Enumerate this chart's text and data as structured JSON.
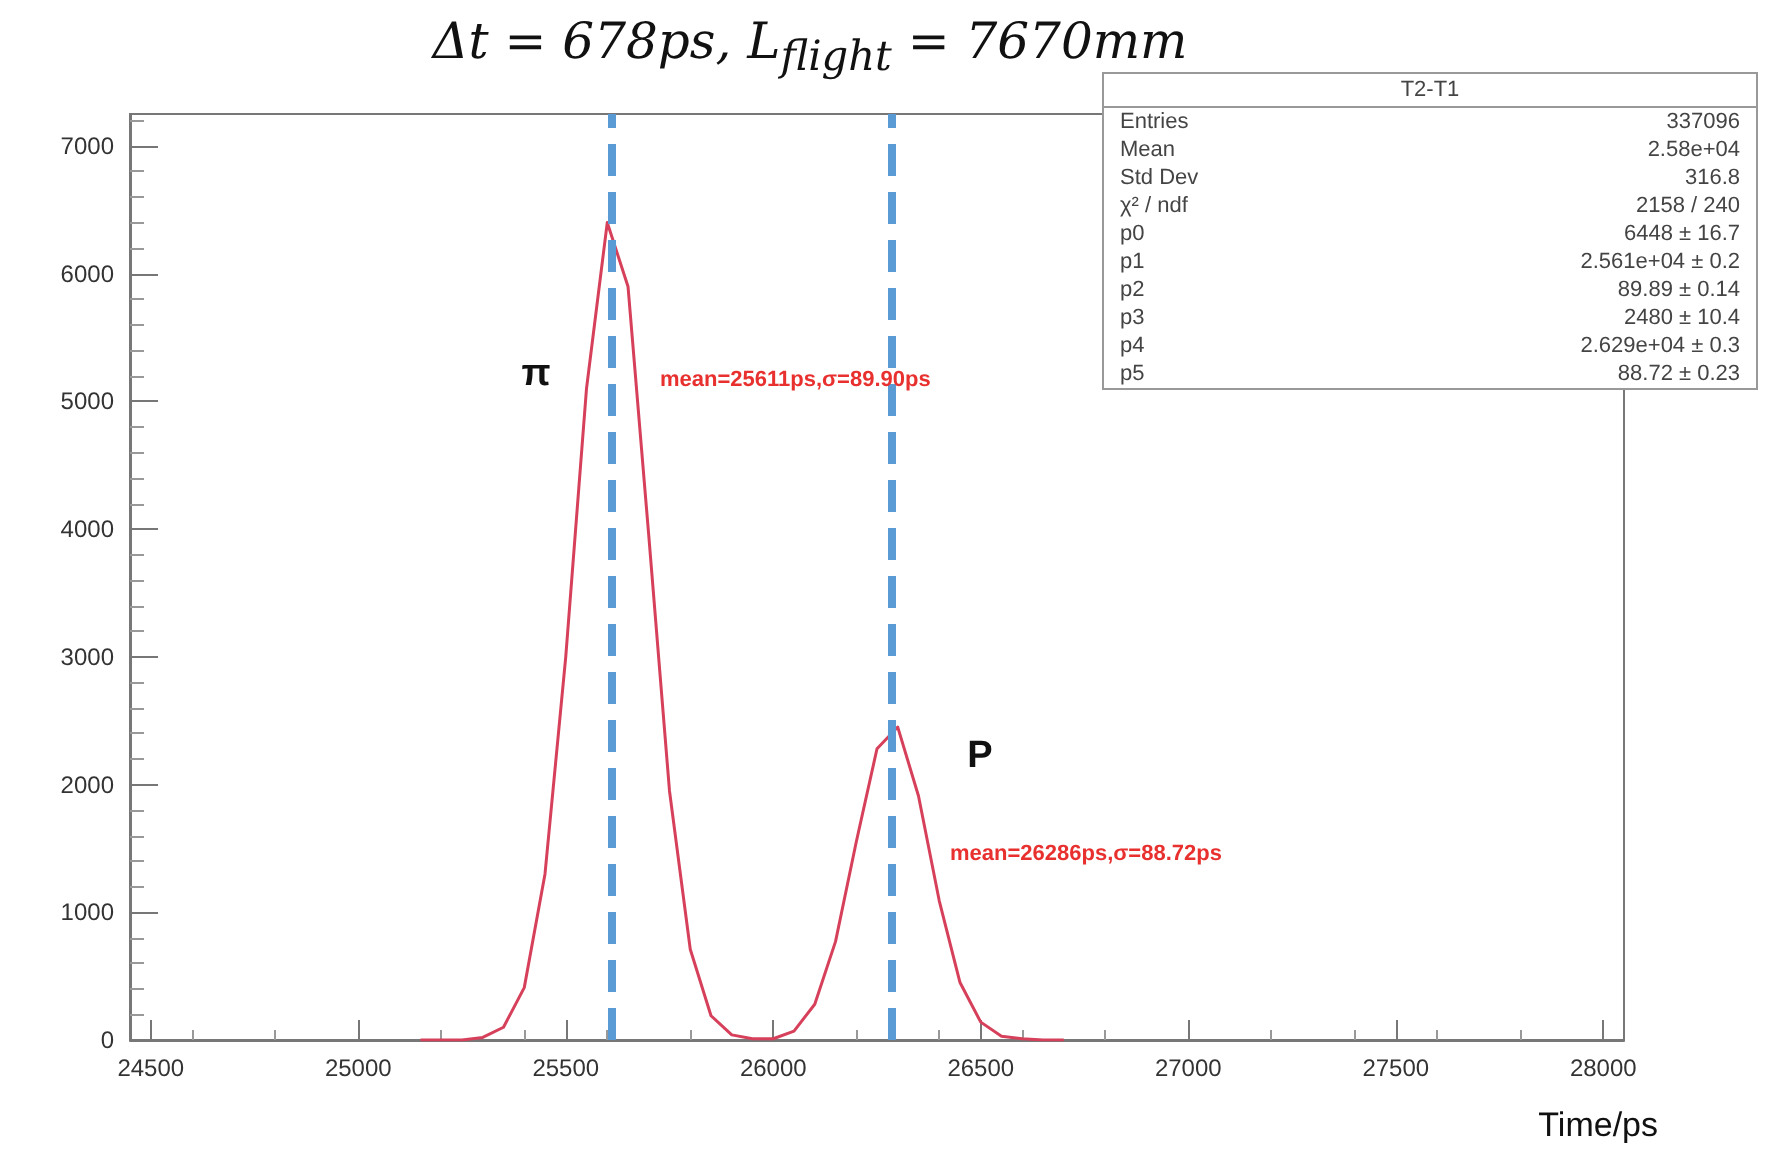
{
  "chart_data": {
    "type": "line",
    "title": "Δt = 678ps, L$_{flight}$ = 7670mm",
    "xlabel": "Time/ps",
    "x": [
      25150,
      25200,
      25250,
      25300,
      25350,
      25400,
      25450,
      25500,
      25550,
      25600,
      25650,
      25700,
      25750,
      25800,
      25850,
      25900,
      25950,
      26000,
      26050,
      26100,
      26150,
      26200,
      26250,
      26300,
      26350,
      26400,
      26450,
      26500,
      26550,
      26600,
      26650,
      26700
    ],
    "series": [
      {
        "color": "#d6405a",
        "values": [
          0,
          0,
          0,
          20,
          100,
          410,
          1300,
          3000,
          5100,
          6400,
          5900,
          3950,
          1950,
          710,
          190,
          40,
          10,
          10,
          70,
          280,
          770,
          1550,
          2280,
          2450,
          1910,
          1090,
          450,
          140,
          30,
          10,
          0,
          0
        ]
      }
    ],
    "xlim": [
      24450,
      28050
    ],
    "xticks": [
      24500,
      25000,
      25500,
      26000,
      26500,
      27000,
      27500,
      28000
    ],
    "ylim": [
      0,
      7250
    ],
    "yticks": [
      0,
      1000,
      2000,
      3000,
      4000,
      5000,
      6000,
      7000
    ],
    "marker": "none",
    "line_style": "solid",
    "grid": false,
    "ref_lines": [
      {
        "axis": "x",
        "value": 25611,
        "color": "#5b9bd5",
        "line_style": "dashed"
      },
      {
        "axis": "x",
        "value": 26286,
        "color": "#5b9bd5",
        "line_style": "dashed"
      }
    ],
    "annotations": [
      "π",
      "mean=25611ps,σ=89.90ps",
      "P",
      "mean=26286ps,σ=88.72ps",
      "T2-T1",
      "Entries",
      "337096",
      "Mean",
      "2.58e+04",
      "Std Dev",
      "316.8",
      "χ² / ndf",
      "2158 / 240",
      "p0",
      "6448 ± 16.7",
      "p1",
      "2.561e+04 ± 0.2",
      "p2",
      "89.89 ± 0.14",
      "p3",
      "2480 ± 10.4",
      "p4",
      "2.629e+04 ± 0.3",
      "p5",
      "88.72 ± 0.23"
    ]
  }
}
